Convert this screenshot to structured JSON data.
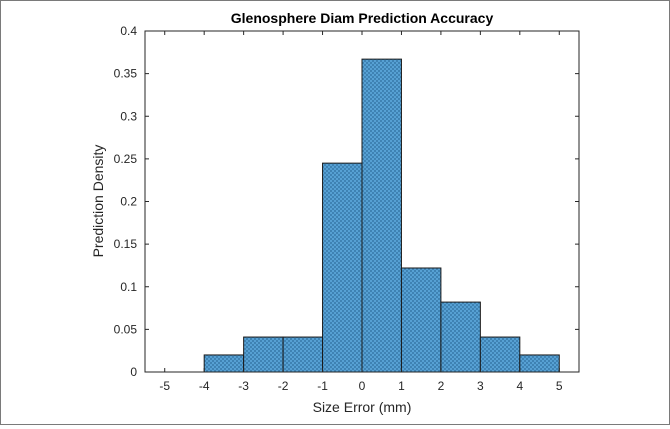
{
  "chart_data": {
    "type": "bar",
    "title": "Glenosphere Diam Prediction Accuracy",
    "xlabel": "Size Error (mm)",
    "ylabel": "Prediction Density",
    "xlim": [
      -5.5,
      5.5
    ],
    "ylim": [
      0,
      0.4
    ],
    "xticks": [
      -5,
      -4,
      -3,
      -2,
      -1,
      0,
      1,
      2,
      3,
      4,
      5
    ],
    "xtick_labels": [
      "-5",
      "-4",
      "-3",
      "-2",
      "-1",
      "0",
      "1",
      "2",
      "3",
      "4",
      "5"
    ],
    "yticks": [
      0,
      0.05,
      0.1,
      0.15,
      0.2,
      0.25,
      0.3,
      0.35,
      0.4
    ],
    "ytick_labels": [
      "0",
      "0.05",
      "0.1",
      "0.15",
      "0.2",
      "0.25",
      "0.3",
      "0.35",
      "0.4"
    ],
    "bins": [
      {
        "start": -4,
        "end": -3,
        "value": 0.02
      },
      {
        "start": -3,
        "end": -2,
        "value": 0.041
      },
      {
        "start": -2,
        "end": -1,
        "value": 0.041
      },
      {
        "start": -1,
        "end": 0,
        "value": 0.245
      },
      {
        "start": 0,
        "end": 1,
        "value": 0.367
      },
      {
        "start": 1,
        "end": 2,
        "value": 0.122
      },
      {
        "start": 2,
        "end": 3,
        "value": 0.082
      },
      {
        "start": 3,
        "end": 4,
        "value": 0.041
      },
      {
        "start": 4,
        "end": 5,
        "value": 0.02
      }
    ],
    "bar_color": "#5aa5d8",
    "bar_edge_color": "#1a1a1a",
    "grid": false,
    "box": true
  }
}
